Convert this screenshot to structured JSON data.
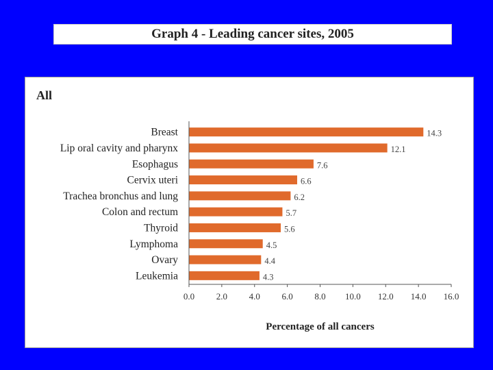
{
  "slide": {
    "title": "Graph 4 - Leading cancer sites, 2005"
  },
  "colors": {
    "background": "#0000ff",
    "bar": "#e06a2c"
  },
  "chart_data": {
    "type": "bar",
    "orientation": "horizontal",
    "title": "Graph 4 - Leading cancer sites, 2005",
    "subtitle": "All",
    "categories": [
      "Breast",
      "Lip oral cavity and pharynx",
      "Esophagus",
      "Cervix uteri",
      "Trachea bronchus and lung",
      "Colon and rectum",
      "Thyroid",
      "Lymphoma",
      "Ovary",
      "Leukemia"
    ],
    "values": [
      14.3,
      12.1,
      7.6,
      6.6,
      6.2,
      5.7,
      5.6,
      4.5,
      4.4,
      4.3
    ],
    "value_labels": [
      "14.3",
      "12.1",
      "7.6",
      "6.6",
      "6.2",
      "5.7",
      "5.6",
      "4.5",
      "4.4",
      "4.3"
    ],
    "xlabel": "Percentage of all cancers",
    "ylabel": "",
    "xlim": [
      0,
      16
    ],
    "xticks": [
      "0.0",
      "2.0",
      "4.0",
      "6.0",
      "8.0",
      "10.0",
      "12.0",
      "14.0",
      "16.0"
    ],
    "grid": false,
    "legend": "none"
  }
}
